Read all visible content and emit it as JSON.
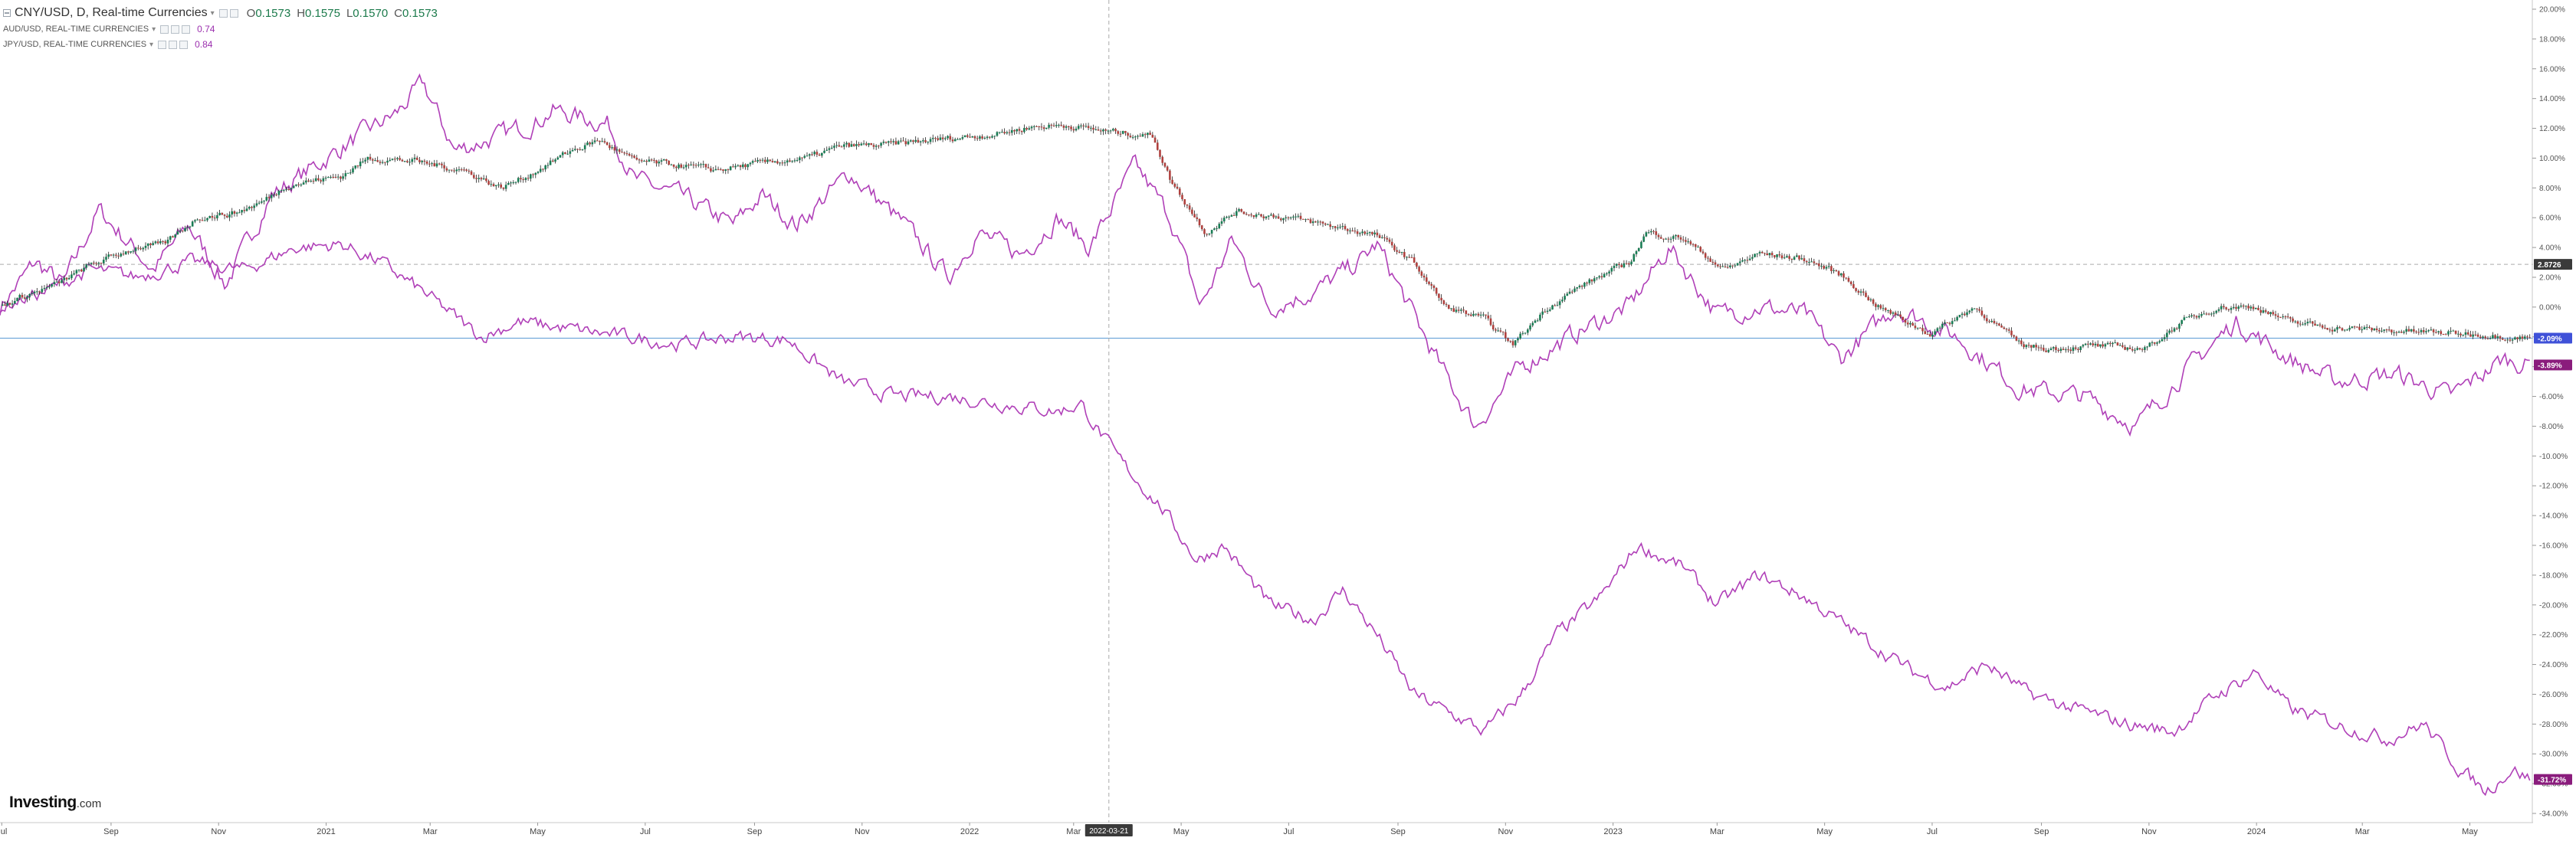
{
  "legend": {
    "main": {
      "symbol": "CNY/USD, D, Real-time Currencies",
      "open_key": "O",
      "open": "0.1573",
      "high_key": "H",
      "high": "0.1575",
      "low_key": "L",
      "low": "0.1570",
      "close_key": "C",
      "close": "0.1573"
    },
    "overlays": [
      {
        "name": "AUD/USD, REAL-TIME CURRENCIES",
        "value": "0.74"
      },
      {
        "name": "JPY/USD, REAL-TIME CURRENCIES",
        "value": "0.84"
      }
    ]
  },
  "logo": {
    "brand": "Investing",
    "domain": ".com"
  },
  "crosshair": {
    "date_label": "2022-03-21",
    "price_label": "2.8726"
  },
  "colors": {
    "up_candle": "#1a7d55",
    "down_candle": "#b0413e",
    "overlay_line": "#b040b8",
    "baseline": "#5b9bd5",
    "price_tag": "#3a3a3a",
    "cny_tag": "#3f51d8",
    "overlay_tag": "#8a1c7c",
    "grid": "#dddddd"
  },
  "chart_data": {
    "type": "line",
    "y_axis": {
      "unit": "%",
      "range": [
        -34,
        20
      ],
      "ticks": [
        "20.00%",
        "18.00%",
        "16.00%",
        "14.00%",
        "12.00%",
        "10.00%",
        "8.00%",
        "6.00%",
        "4.00%",
        "2.00%",
        "0.00%",
        "-2.00%",
        "-4.00%",
        "-6.00%",
        "-8.00%",
        "-10.00%",
        "-12.00%",
        "-14.00%",
        "-16.00%",
        "-18.00%",
        "-20.00%",
        "-22.00%",
        "-24.00%",
        "-26.00%",
        "-28.00%",
        "-30.00%",
        "-32.00%",
        "-34.00%"
      ]
    },
    "x_axis": {
      "range": [
        "2020-06-30",
        "2024-06-05"
      ],
      "ticks": [
        {
          "date": "2020-07-01",
          "label": "Jul"
        },
        {
          "date": "2020-09-01",
          "label": "Sep"
        },
        {
          "date": "2020-11-01",
          "label": "Nov"
        },
        {
          "date": "2021-01-01",
          "label": "2021"
        },
        {
          "date": "2021-03-01",
          "label": "Mar"
        },
        {
          "date": "2021-05-01",
          "label": "May"
        },
        {
          "date": "2021-07-01",
          "label": "Jul"
        },
        {
          "date": "2021-09-01",
          "label": "Sep"
        },
        {
          "date": "2021-11-01",
          "label": "Nov"
        },
        {
          "date": "2022-01-01",
          "label": "2022"
        },
        {
          "date": "2022-03-01",
          "label": "Mar"
        },
        {
          "date": "2022-05-01",
          "label": "May"
        },
        {
          "date": "2022-07-01",
          "label": "Jul"
        },
        {
          "date": "2022-09-01",
          "label": "Sep"
        },
        {
          "date": "2022-11-01",
          "label": "Nov"
        },
        {
          "date": "2023-01-01",
          "label": "2023"
        },
        {
          "date": "2023-03-01",
          "label": "Mar"
        },
        {
          "date": "2023-05-01",
          "label": "May"
        },
        {
          "date": "2023-07-01",
          "label": "Jul"
        },
        {
          "date": "2023-09-01",
          "label": "Sep"
        },
        {
          "date": "2023-11-01",
          "label": "Nov"
        },
        {
          "date": "2024-01-01",
          "label": "2024"
        },
        {
          "date": "2024-03-01",
          "label": "Mar"
        },
        {
          "date": "2024-05-01",
          "label": "May"
        }
      ]
    },
    "grid": false,
    "crosshair_date": "2022-03-21",
    "crosshair_value": 2.87,
    "series": [
      {
        "name": "CNY/USD",
        "style": "candlestick",
        "last_label": "-2.09%",
        "last_value": -2.09,
        "points": [
          [
            "2020-06-30",
            0.0
          ],
          [
            "2020-07-15",
            0.8
          ],
          [
            "2020-08-01",
            1.5
          ],
          [
            "2020-08-20",
            2.8
          ],
          [
            "2020-09-15",
            4.0
          ],
          [
            "2020-10-01",
            4.2
          ],
          [
            "2020-10-20",
            6.0
          ],
          [
            "2020-11-10",
            6.3
          ],
          [
            "2020-11-25",
            7.0
          ],
          [
            "2020-12-10",
            8.2
          ],
          [
            "2021-01-10",
            8.8
          ],
          [
            "2021-01-25",
            10.0
          ],
          [
            "2021-02-20",
            9.8
          ],
          [
            "2021-03-20",
            9.2
          ],
          [
            "2021-04-10",
            8.0
          ],
          [
            "2021-04-25",
            8.8
          ],
          [
            "2021-05-20",
            10.5
          ],
          [
            "2021-06-05",
            11.2
          ],
          [
            "2021-06-25",
            9.8
          ],
          [
            "2021-07-15",
            9.6
          ],
          [
            "2021-08-10",
            9.2
          ],
          [
            "2021-09-01",
            9.6
          ],
          [
            "2021-10-01",
            10.0
          ],
          [
            "2021-10-20",
            10.8
          ],
          [
            "2021-11-15",
            10.9
          ],
          [
            "2021-12-10",
            11.2
          ],
          [
            "2022-01-15",
            11.6
          ],
          [
            "2022-02-05",
            12.1
          ],
          [
            "2022-02-25",
            12.2
          ],
          [
            "2022-03-20",
            11.8
          ],
          [
            "2022-04-15",
            11.5
          ],
          [
            "2022-04-25",
            8.5
          ],
          [
            "2022-05-15",
            5.0
          ],
          [
            "2022-06-01",
            6.4
          ],
          [
            "2022-07-01",
            6.0
          ],
          [
            "2022-08-01",
            5.3
          ],
          [
            "2022-08-20",
            4.8
          ],
          [
            "2022-09-10",
            3.0
          ],
          [
            "2022-09-28",
            0.0
          ],
          [
            "2022-10-20",
            -0.8
          ],
          [
            "2022-11-05",
            -2.5
          ],
          [
            "2022-11-25",
            0.0
          ],
          [
            "2022-12-15",
            1.5
          ],
          [
            "2023-01-10",
            3.0
          ],
          [
            "2023-01-20",
            5.0
          ],
          [
            "2023-02-10",
            4.6
          ],
          [
            "2023-03-05",
            2.5
          ],
          [
            "2023-03-25",
            3.6
          ],
          [
            "2023-04-20",
            3.2
          ],
          [
            "2023-05-10",
            2.2
          ],
          [
            "2023-06-01",
            0.0
          ],
          [
            "2023-06-30",
            -1.8
          ],
          [
            "2023-07-25",
            0.0
          ],
          [
            "2023-08-20",
            -2.5
          ],
          [
            "2023-09-05",
            -2.8
          ],
          [
            "2023-10-01",
            -2.6
          ],
          [
            "2023-10-30",
            -2.8
          ],
          [
            "2023-11-20",
            -1.0
          ],
          [
            "2023-12-10",
            0.0
          ],
          [
            "2024-01-01",
            0.0
          ],
          [
            "2024-01-20",
            -1.0
          ],
          [
            "2024-02-15",
            -1.4
          ],
          [
            "2024-03-20",
            -1.6
          ],
          [
            "2024-05-01",
            -1.8
          ],
          [
            "2024-06-05",
            -2.09
          ]
        ]
      },
      {
        "name": "AUD/USD",
        "style": "line",
        "last_label": "-3.89%",
        "last_value": -3.89,
        "points": [
          [
            "2020-06-30",
            0.0
          ],
          [
            "2020-07-20",
            3.0
          ],
          [
            "2020-08-05",
            1.5
          ],
          [
            "2020-08-25",
            6.5
          ],
          [
            "2020-09-25",
            2.5
          ],
          [
            "2020-10-15",
            5.5
          ],
          [
            "2020-11-05",
            1.5
          ],
          [
            "2020-12-01",
            7.5
          ],
          [
            "2020-12-20",
            9.0
          ],
          [
            "2021-01-20",
            11.5
          ],
          [
            "2021-02-10",
            13.0
          ],
          [
            "2021-02-25",
            15.0
          ],
          [
            "2021-03-15",
            10.5
          ],
          [
            "2021-04-10",
            11.5
          ],
          [
            "2021-05-01",
            12.5
          ],
          [
            "2021-05-10",
            13.2
          ],
          [
            "2021-06-10",
            12.3
          ],
          [
            "2021-06-25",
            8.5
          ],
          [
            "2021-07-20",
            7.5
          ],
          [
            "2021-08-20",
            5.5
          ],
          [
            "2021-09-05",
            7.5
          ],
          [
            "2021-09-25",
            5.5
          ],
          [
            "2021-10-25",
            9.0
          ],
          [
            "2021-11-25",
            5.5
          ],
          [
            "2021-12-20",
            2.0
          ],
          [
            "2022-01-05",
            5.0
          ],
          [
            "2022-01-30",
            3.5
          ],
          [
            "2022-02-20",
            6.0
          ],
          [
            "2022-03-10",
            4.0
          ],
          [
            "2022-04-05",
            9.5
          ],
          [
            "2022-04-25",
            6.0
          ],
          [
            "2022-05-12",
            0.0
          ],
          [
            "2022-05-30",
            4.5
          ],
          [
            "2022-06-20",
            0.0
          ],
          [
            "2022-07-15",
            1.0
          ],
          [
            "2022-08-10",
            3.0
          ],
          [
            "2022-08-20",
            4.2
          ],
          [
            "2022-09-25",
            -4.0
          ],
          [
            "2022-10-15",
            -8.0
          ],
          [
            "2022-11-10",
            -4.0
          ],
          [
            "2022-12-15",
            -1.5
          ],
          [
            "2023-01-10",
            0.0
          ],
          [
            "2023-02-02",
            4.0
          ],
          [
            "2023-03-01",
            -0.5
          ],
          [
            "2023-03-25",
            0.0
          ],
          [
            "2023-04-20",
            -0.5
          ],
          [
            "2023-05-10",
            -3.5
          ],
          [
            "2023-06-10",
            0.0
          ],
          [
            "2023-07-15",
            -2.0
          ],
          [
            "2023-08-20",
            -5.5
          ],
          [
            "2023-09-25",
            -6.0
          ],
          [
            "2023-10-25",
            -8.0
          ],
          [
            "2023-11-20",
            -4.5
          ],
          [
            "2023-12-20",
            -1.0
          ],
          [
            "2024-01-20",
            -3.5
          ],
          [
            "2024-02-15",
            -5.0
          ],
          [
            "2024-03-20",
            -4.5
          ],
          [
            "2024-04-20",
            -6.0
          ],
          [
            "2024-05-20",
            -3.5
          ],
          [
            "2024-06-05",
            -3.89
          ]
        ]
      },
      {
        "name": "JPY/USD",
        "style": "line",
        "last_label": "-31.72%",
        "last_value": -31.72,
        "points": [
          [
            "2020-06-30",
            0.0
          ],
          [
            "2020-07-25",
            1.0
          ],
          [
            "2020-08-20",
            2.5
          ],
          [
            "2020-09-15",
            2.0
          ],
          [
            "2020-10-15",
            3.0
          ],
          [
            "2020-11-15",
            2.5
          ],
          [
            "2020-12-15",
            4.0
          ],
          [
            "2021-01-10",
            4.2
          ],
          [
            "2021-02-01",
            3.0
          ],
          [
            "2021-02-25",
            1.0
          ],
          [
            "2021-03-30",
            -2.0
          ],
          [
            "2021-04-20",
            -1.0
          ],
          [
            "2021-05-20",
            -1.5
          ],
          [
            "2021-06-20",
            -2.0
          ],
          [
            "2021-07-20",
            -2.5
          ],
          [
            "2021-08-20",
            -2.0
          ],
          [
            "2021-09-20",
            -2.2
          ],
          [
            "2021-10-20",
            -5.0
          ],
          [
            "2021-11-20",
            -6.0
          ],
          [
            "2021-12-20",
            -6.0
          ],
          [
            "2022-01-20",
            -6.5
          ],
          [
            "2022-02-20",
            -7.0
          ],
          [
            "2022-03-05",
            -6.5
          ],
          [
            "2022-03-25",
            -10.0
          ],
          [
            "2022-04-20",
            -13.5
          ],
          [
            "2022-05-10",
            -17.0
          ],
          [
            "2022-05-25",
            -16.0
          ],
          [
            "2022-06-20",
            -20.0
          ],
          [
            "2022-07-15",
            -21.0
          ],
          [
            "2022-08-01",
            -19.0
          ],
          [
            "2022-08-20",
            -22.0
          ],
          [
            "2022-09-10",
            -26.0
          ],
          [
            "2022-10-20",
            -28.5
          ],
          [
            "2022-11-10",
            -26.0
          ],
          [
            "2022-11-30",
            -22.0
          ],
          [
            "2022-12-25",
            -19.5
          ],
          [
            "2023-01-15",
            -16.0
          ],
          [
            "2023-02-10",
            -17.5
          ],
          [
            "2023-03-01",
            -20.0
          ],
          [
            "2023-03-25",
            -18.0
          ],
          [
            "2023-04-20",
            -19.5
          ],
          [
            "2023-05-20",
            -22.0
          ],
          [
            "2023-06-20",
            -24.5
          ],
          [
            "2023-07-10",
            -25.5
          ],
          [
            "2023-08-01",
            -24.0
          ],
          [
            "2023-08-25",
            -26.0
          ],
          [
            "2023-09-20",
            -27.0
          ],
          [
            "2023-10-20",
            -28.0
          ],
          [
            "2023-11-15",
            -28.5
          ],
          [
            "2023-12-10",
            -26.0
          ],
          [
            "2024-01-01",
            -24.5
          ],
          [
            "2024-01-20",
            -27.0
          ],
          [
            "2024-02-15",
            -28.0
          ],
          [
            "2024-03-15",
            -29.0
          ],
          [
            "2024-04-05",
            -28.0
          ],
          [
            "2024-04-25",
            -31.0
          ],
          [
            "2024-05-10",
            -32.5
          ],
          [
            "2024-05-25",
            -31.0
          ],
          [
            "2024-06-05",
            -31.72
          ]
        ]
      }
    ]
  }
}
